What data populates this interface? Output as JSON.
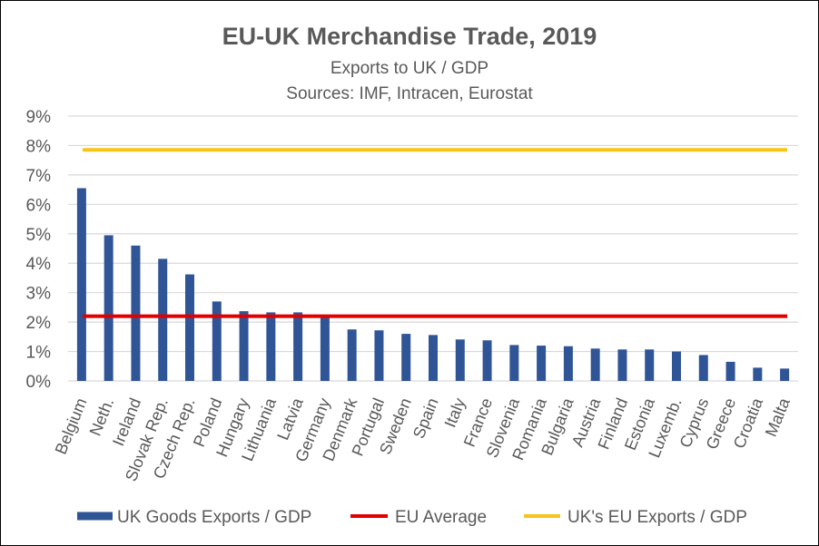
{
  "chart_data": {
    "type": "bar",
    "title": "EU-UK Merchandise Trade, 2019",
    "subtitle": "Exports to UK / GDP",
    "source": "Sources:  IMF, Intracen, Eurostat",
    "categories": [
      "Belgium",
      "Neth.",
      "Ireland",
      "Slovak Rep.",
      "Czech Rep.",
      "Poland",
      "Hungary",
      "Lithuania",
      "Latvia",
      "Germany",
      "Denmark",
      "Portugal",
      "Sweden",
      "Spain",
      "Italy",
      "France",
      "Slovenia",
      "Romania",
      "Bulgaria",
      "Austria",
      "Finland",
      "Estonia",
      "Luxemb.",
      "Cyprus",
      "Greece",
      "Croatia",
      "Malta"
    ],
    "series": [
      {
        "name": "UK Goods Exports / GDP",
        "kind": "bar",
        "color": "#2F5597",
        "values": [
          6.55,
          4.95,
          4.6,
          4.15,
          3.62,
          2.7,
          2.37,
          2.33,
          2.33,
          2.18,
          1.75,
          1.72,
          1.6,
          1.56,
          1.41,
          1.38,
          1.22,
          1.2,
          1.18,
          1.1,
          1.07,
          1.07,
          1.0,
          0.88,
          0.65,
          0.45,
          0.42
        ]
      },
      {
        "name": "EU Average",
        "kind": "hline",
        "color": "#E00000",
        "value": 2.2
      },
      {
        "name": "UK's EU Exports / GDP",
        "kind": "hline",
        "color": "#F5C518",
        "value": 7.85
      }
    ],
    "yticks": [
      "0%",
      "1%",
      "2%",
      "3%",
      "4%",
      "5%",
      "6%",
      "7%",
      "8%",
      "9%"
    ],
    "ylim": [
      0,
      9
    ],
    "grid": true,
    "legend": "bottom"
  }
}
